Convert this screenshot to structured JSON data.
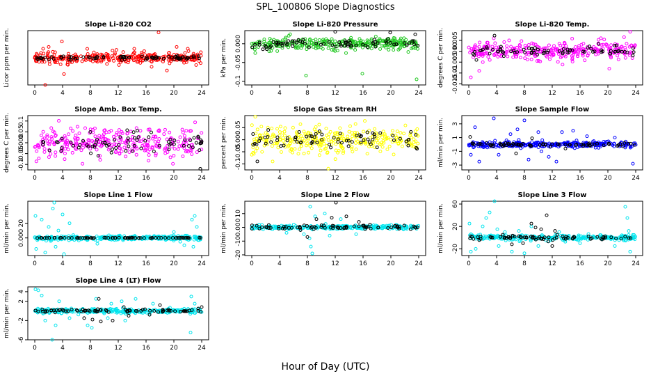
{
  "figure": {
    "title": "SPL_100806  Slope Diagnostics",
    "xlabel": "Hour of Day (UTC)",
    "colors": {
      "red": "#ff0000",
      "green": "#22c822",
      "magenta": "#ff00ff",
      "yellow": "#ffff00",
      "blue": "#0000ff",
      "cyan": "#00e5ee",
      "black": "#000000"
    }
  },
  "chart_data": [
    {
      "type": "scatter",
      "title": "Slope Li-820 CO2",
      "xlabel": "",
      "ylabel": "Licor ppm per min.",
      "xlim": [
        -1,
        25
      ],
      "xticks": [
        0,
        4,
        8,
        12,
        16,
        20,
        24
      ],
      "ylim": [
        -1.5,
        1.5
      ],
      "yticks": [],
      "point_color": "red",
      "bg_base": 0,
      "bg_spread": 0.3,
      "bg_outliers": [
        [
          1.2,
          0.5
        ],
        [
          2.0,
          0.6
        ],
        [
          3.9,
          0.9
        ],
        [
          4.2,
          -0.9
        ],
        [
          8.5,
          0.3
        ],
        [
          12.1,
          -0.4
        ],
        [
          14.3,
          0.5
        ],
        [
          16.8,
          -0.5
        ],
        [
          17.8,
          1.4
        ],
        [
          19.0,
          -0.7
        ],
        [
          20.4,
          0.6
        ],
        [
          22.0,
          0.5
        ],
        [
          23.2,
          -0.4
        ],
        [
          1.5,
          -1.5
        ]
      ],
      "fg_base": 0,
      "fg_spread": 0.1,
      "fg_outliers": []
    },
    {
      "type": "scatter",
      "title": "Slope Li-820 Pressure",
      "xlabel": "",
      "ylabel": "kPa per min.",
      "xlim": [
        -1,
        25
      ],
      "xticks": [
        0,
        4,
        8,
        12,
        16,
        20,
        24
      ],
      "ylim": [
        -0.11,
        0.035
      ],
      "yticks": [
        0.0,
        -0.05,
        -0.1
      ],
      "point_color": "green",
      "bg_base": 0,
      "bg_spread": 0.016,
      "bg_outliers": [
        [
          7.8,
          -0.085
        ],
        [
          15.9,
          -0.08
        ],
        [
          23.7,
          -0.095
        ],
        [
          0.5,
          -0.025
        ],
        [
          2.5,
          -0.02
        ],
        [
          22.5,
          -0.022
        ]
      ],
      "fg_base": 0,
      "fg_spread": 0.012,
      "fg_outliers": [
        [
          12.0,
          0.032
        ],
        [
          19.9,
          0.03
        ],
        [
          23.5,
          0.025
        ]
      ]
    },
    {
      "type": "scatter",
      "title": "Slope Li-820 Temp.",
      "xlabel": "",
      "ylabel": "degrees C per min.",
      "xlim": [
        -1,
        25
      ],
      "xticks": [
        0,
        4,
        8,
        12,
        16,
        20,
        24
      ],
      "ylim": [
        -0.0155,
        0.0095
      ],
      "yticks": [
        0.005,
        0.0,
        -0.005,
        -0.01,
        -0.015
      ],
      "point_color": "magenta",
      "bg_base": 0,
      "bg_spread": 0.004,
      "bg_outliers": [
        [
          23.2,
          0.009
        ],
        [
          3.6,
          0.006
        ],
        [
          19.0,
          0.006
        ],
        [
          0.3,
          -0.012
        ],
        [
          20.2,
          -0.008
        ],
        [
          1.5,
          -0.009
        ],
        [
          5.8,
          0.005
        ]
      ],
      "fg_base": 0,
      "fg_spread": 0.002,
      "fg_outliers": [
        [
          3.7,
          0.0072
        ],
        [
          1.1,
          -0.004
        ]
      ]
    },
    {
      "type": "scatter",
      "title": "Slope Amb. Box Temp.",
      "xlabel": "",
      "ylabel": "degrees C per min.",
      "xlim": [
        -1,
        25
      ],
      "xticks": [
        0,
        4,
        8,
        12,
        16,
        20,
        24
      ],
      "ylim": [
        -0.125,
        0.125
      ],
      "yticks": [
        0.1,
        0.05,
        0.0,
        -0.05,
        -0.1
      ],
      "point_color": "magenta",
      "bg_base": 0,
      "bg_spread": 0.07,
      "bg_outliers": [],
      "fg_base": 0,
      "fg_spread": 0.05,
      "fg_outliers": [
        [
          23.8,
          -0.12
        ]
      ]
    },
    {
      "type": "scatter",
      "title": "Slope Gas Stream RH",
      "xlabel": "",
      "ylabel": "percent per min.",
      "xlim": [
        -1,
        25
      ],
      "xticks": [
        0,
        4,
        8,
        12,
        16,
        20,
        24
      ],
      "ylim": [
        -0.125,
        0.1
      ],
      "yticks": [
        0.05,
        0.0,
        -0.05,
        -0.1
      ],
      "point_color": "yellow",
      "bg_base": 0,
      "bg_spread": 0.055,
      "bg_outliers": [
        [
          0.5,
          0.095
        ],
        [
          11.0,
          -0.12
        ],
        [
          3.0,
          -0.09
        ]
      ],
      "fg_base": 0,
      "fg_spread": 0.035,
      "fg_outliers": [
        [
          0.8,
          -0.09
        ]
      ]
    },
    {
      "type": "scatter",
      "title": "Slope Sample Flow",
      "xlabel": "",
      "ylabel": "ml/min per min.",
      "xlim": [
        -1,
        25
      ],
      "xticks": [
        0,
        4,
        8,
        12,
        16,
        20,
        24
      ],
      "ylim": [
        -3.7,
        4.2
      ],
      "yticks": [
        3,
        1,
        -1,
        -3
      ],
      "point_color": "blue",
      "bg_base": 0,
      "bg_spread": 0.45,
      "bg_outliers": [
        [
          0.9,
          2.5
        ],
        [
          1.5,
          -2.5
        ],
        [
          3.6,
          3.8
        ],
        [
          4.3,
          -1.5
        ],
        [
          7.0,
          2.2
        ],
        [
          8.0,
          3.5
        ],
        [
          8.6,
          -2.2
        ],
        [
          10.0,
          1.8
        ],
        [
          11.5,
          -1.8
        ],
        [
          12.6,
          -2.5
        ],
        [
          13.4,
          1.8
        ],
        [
          15.0,
          2.0
        ],
        [
          17.0,
          1.2
        ],
        [
          21.0,
          1.0
        ],
        [
          23.6,
          -2.8
        ],
        [
          0.3,
          -1.5
        ],
        [
          6.0,
          1.5
        ]
      ],
      "fg_base": 0,
      "fg_spread": 0.25,
      "fg_outliers": [
        [
          0.2,
          1.1
        ],
        [
          6.8,
          -1.3
        ],
        [
          9.1,
          0.9
        ],
        [
          13.9,
          -0.6
        ]
      ]
    },
    {
      "type": "scatter",
      "title": "Slope Line 1 Flow",
      "xlabel": "",
      "ylabel": "ml/min per min.",
      "xlim": [
        -1,
        25
      ],
      "xticks": [
        0,
        4,
        8,
        12,
        16,
        20,
        24
      ],
      "ylim": [
        -24,
        50
      ],
      "yticks": [
        20,
        0
      ],
      "point_color": "cyan",
      "bg_base": 0,
      "bg_spread": 3,
      "bg_outliers": [
        [
          0.1,
          30
        ],
        [
          0.2,
          -15
        ],
        [
          1.0,
          25
        ],
        [
          1.5,
          -20
        ],
        [
          2.0,
          15
        ],
        [
          2.6,
          40
        ],
        [
          2.8,
          48
        ],
        [
          3.4,
          10
        ],
        [
          4.2,
          -22
        ],
        [
          4.0,
          32
        ],
        [
          3.0,
          -12
        ],
        [
          5.0,
          20
        ],
        [
          9.0,
          -8
        ],
        [
          22.6,
          25
        ],
        [
          23.0,
          30
        ],
        [
          22.8,
          -12
        ],
        [
          21.5,
          -10
        ],
        [
          20.0,
          8
        ],
        [
          23.3,
          15
        ]
      ],
      "fg_base": 0,
      "fg_spread": 0.3,
      "fg_outliers": []
    },
    {
      "type": "scatter",
      "title": "Slope Line 2 Flow",
      "xlabel": "",
      "ylabel": "ml/min per min.",
      "xlim": [
        -1,
        25
      ],
      "xticks": [
        0,
        4,
        8,
        12,
        16,
        20,
        24
      ],
      "ylim": [
        -20.5,
        19
      ],
      "yticks": [
        10,
        0,
        -10,
        -20
      ],
      "point_color": "cyan",
      "bg_base": 0,
      "bg_spread": 1.5,
      "bg_outliers": [
        [
          8.3,
          -8
        ],
        [
          8.5,
          -14
        ],
        [
          8.7,
          -19
        ],
        [
          8.4,
          15
        ],
        [
          9.1,
          8
        ],
        [
          10.5,
          10
        ],
        [
          11.2,
          -6
        ],
        [
          12.8,
          6
        ],
        [
          15.0,
          -5
        ],
        [
          7.5,
          -5
        ],
        [
          5.0,
          -4
        ]
      ],
      "fg_base": 0,
      "fg_spread": 1.5,
      "fg_outliers": [
        [
          12.1,
          18
        ],
        [
          8.0,
          -7
        ],
        [
          7.0,
          -2
        ],
        [
          11.5,
          7
        ],
        [
          13.6,
          8
        ],
        [
          9.3,
          6
        ],
        [
          15.4,
          4
        ]
      ]
    },
    {
      "type": "scatter",
      "title": "Slope Line 3 Flow",
      "xlabel": "",
      "ylabel": "ml/min per min.",
      "xlim": [
        -1,
        25
      ],
      "xticks": [
        0,
        4,
        8,
        12,
        16,
        20,
        24
      ],
      "ylim": [
        -32,
        65
      ],
      "yticks": [
        60,
        20,
        -20
      ],
      "point_color": "cyan",
      "bg_base": 0,
      "bg_spread": 5,
      "bg_outliers": [
        [
          0.1,
          25
        ],
        [
          0.3,
          -25
        ],
        [
          1.0,
          -20
        ],
        [
          2.0,
          20
        ],
        [
          2.5,
          35
        ],
        [
          3.0,
          45
        ],
        [
          3.7,
          65
        ],
        [
          4.1,
          15
        ],
        [
          4.3,
          -15
        ],
        [
          5.2,
          10
        ],
        [
          6.2,
          -25
        ],
        [
          7.2,
          12
        ],
        [
          8.0,
          -28
        ],
        [
          9.0,
          20
        ],
        [
          13.0,
          10
        ],
        [
          16.0,
          -10
        ],
        [
          21.0,
          -15
        ],
        [
          22.5,
          55
        ],
        [
          22.8,
          35
        ],
        [
          23.2,
          -25
        ],
        [
          23.0,
          12
        ],
        [
          10.0,
          -15
        ]
      ],
      "fg_base": 0,
      "fg_spread": 4,
      "fg_outliers": [
        [
          11.2,
          40
        ],
        [
          9.0,
          25
        ],
        [
          9.6,
          18
        ],
        [
          10.4,
          15
        ],
        [
          12.4,
          12
        ],
        [
          7.8,
          -10
        ],
        [
          6.2,
          -12
        ],
        [
          12.0,
          -15
        ]
      ]
    },
    {
      "type": "scatter",
      "title": "Slope Line 4 (LT) Flow",
      "xlabel": "",
      "ylabel": "ml/min per min.",
      "xlim": [
        -1,
        25
      ],
      "xticks": [
        0,
        4,
        8,
        12,
        16,
        20,
        24
      ],
      "ylim": [
        -6,
        5
      ],
      "yticks": [
        4,
        2,
        -2,
        -6
      ],
      "point_color": "cyan",
      "bg_base": 0,
      "bg_spread": 0.5,
      "bg_outliers": [
        [
          0.1,
          4.5
        ],
        [
          0.5,
          4.3
        ],
        [
          1.0,
          3.2
        ],
        [
          1.5,
          -2.0
        ],
        [
          2.5,
          -6.0
        ],
        [
          3.0,
          -3.0
        ],
        [
          3.5,
          2.0
        ],
        [
          7.6,
          -3.0
        ],
        [
          8.2,
          -3.5
        ],
        [
          8.8,
          2.5
        ],
        [
          10.5,
          -1.5
        ],
        [
          11.0,
          1.5
        ],
        [
          12.5,
          2.0
        ],
        [
          13.0,
          -2.0
        ],
        [
          14.5,
          2.5
        ],
        [
          17.0,
          1.5
        ],
        [
          22.4,
          -4.5
        ],
        [
          22.5,
          3.0
        ],
        [
          23.0,
          1.5
        ],
        [
          5.0,
          -1.5
        ]
      ],
      "fg_base": 0,
      "fg_spread": 0.3,
      "fg_outliers": [
        [
          9.2,
          2.5
        ],
        [
          7.1,
          -1.5
        ],
        [
          8.3,
          -1.8
        ],
        [
          9.5,
          -2.2
        ],
        [
          11.2,
          -2.0
        ],
        [
          12.8,
          0.8
        ],
        [
          13.5,
          -1.0
        ],
        [
          16.5,
          -0.8
        ],
        [
          18.0,
          1.2
        ],
        [
          23.5,
          0.5
        ],
        [
          24.0,
          0.8
        ]
      ]
    }
  ]
}
